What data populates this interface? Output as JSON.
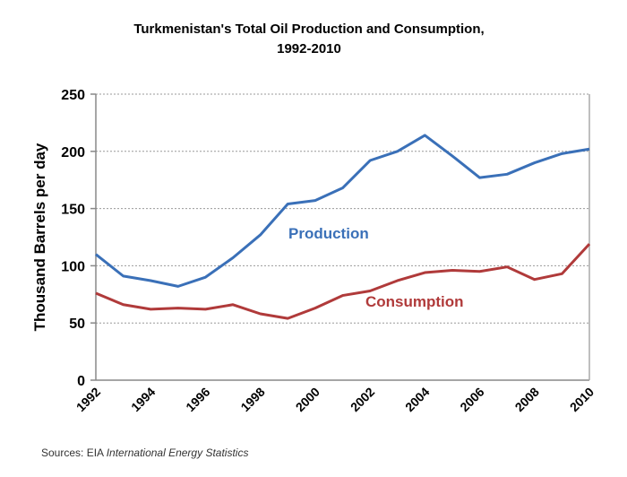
{
  "chart_data": {
    "type": "line",
    "title_line1": "Turkmenistan's Total Oil Production and Consumption,",
    "title_line2": "1992-2010",
    "xlabel": "",
    "ylabel": "Thousand Barrels per day",
    "ylim": [
      0,
      250
    ],
    "yticks": [
      0,
      50,
      100,
      150,
      200,
      250
    ],
    "xlim": [
      1992,
      2010
    ],
    "xticks": [
      1992,
      1994,
      1996,
      1998,
      2000,
      2002,
      2004,
      2006,
      2008,
      2010
    ],
    "grid": "horizontal dotted",
    "x": [
      1992,
      1993,
      1994,
      1995,
      1996,
      1997,
      1998,
      1999,
      2000,
      2001,
      2002,
      2003,
      2004,
      2005,
      2006,
      2007,
      2008,
      2009,
      2010
    ],
    "series": [
      {
        "name": "Production",
        "color": "#3a70b8",
        "values": [
          110,
          91,
          87,
          82,
          90,
          107,
          127,
          154,
          157,
          168,
          192,
          200,
          214,
          196,
          177,
          180,
          190,
          198,
          202
        ]
      },
      {
        "name": "Consumption",
        "color": "#b03a3a",
        "values": [
          76,
          66,
          62,
          63,
          62,
          66,
          58,
          54,
          63,
          74,
          78,
          87,
          94,
          96,
          95,
          99,
          88,
          93,
          119
        ]
      }
    ]
  },
  "source_prefix": "Sources: EIA ",
  "source_italic": "International Energy Statistics"
}
